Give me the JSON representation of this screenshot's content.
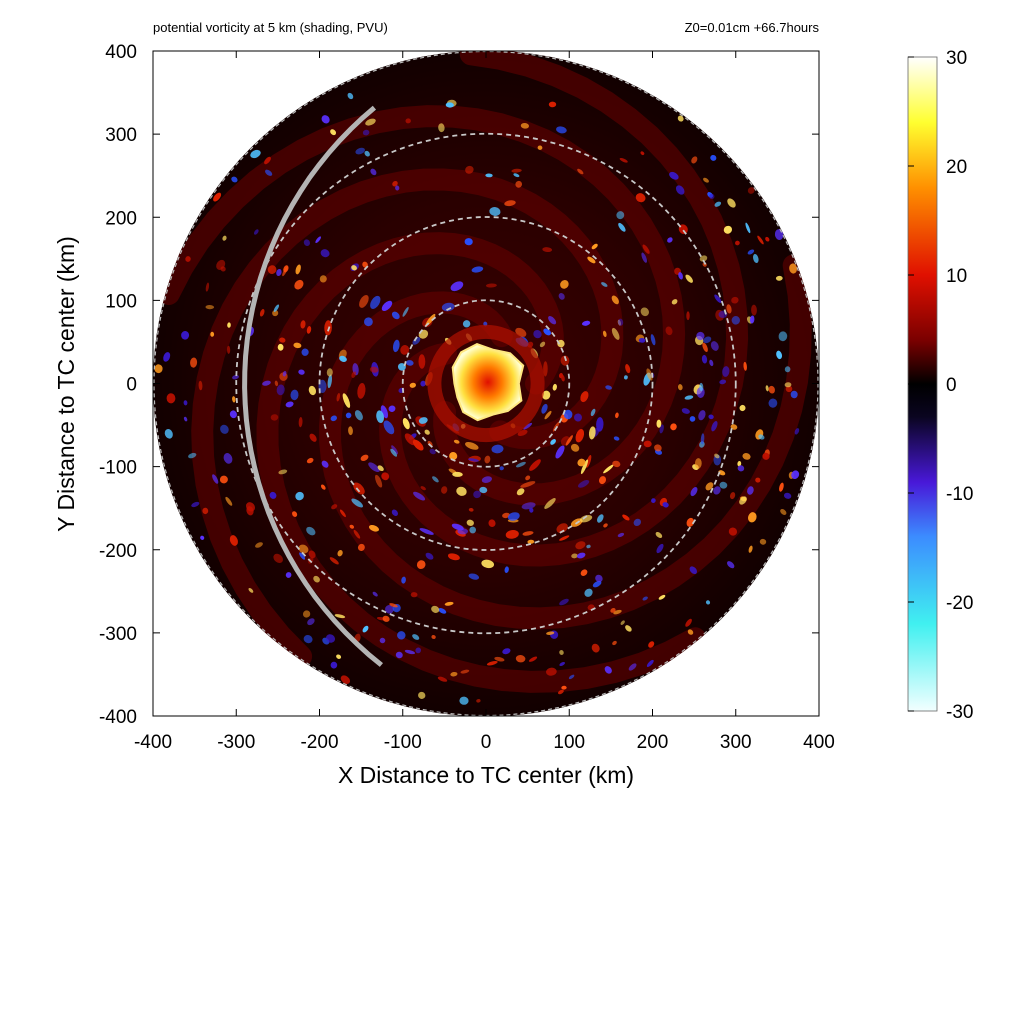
{
  "chart_data": {
    "type": "heatmap",
    "title_left": "potential vorticity at 5 km (shading, PVU)",
    "title_right": "Z0=0.01cm  +66.7hours",
    "xlabel": "X Distance to TC center (km)",
    "ylabel": "Y Distance to TC center (km)",
    "xlim": [
      -400,
      400
    ],
    "ylim": [
      -400,
      400
    ],
    "x_ticks": [
      -400,
      -300,
      -200,
      -100,
      0,
      100,
      200,
      300,
      400
    ],
    "y_ticks": [
      -400,
      -300,
      -200,
      -100,
      0,
      100,
      200,
      300,
      400
    ],
    "x_tick_labels": [
      "-400",
      "-300",
      "-200",
      "-100",
      "0",
      "100",
      "200",
      "300",
      "400"
    ],
    "y_tick_labels": [
      "-400",
      "-300",
      "-200",
      "-100",
      "0",
      "100",
      "200",
      "300",
      "400"
    ],
    "domain_radius_km": 400,
    "range_rings_km": [
      100,
      200,
      300
    ],
    "colorbar": {
      "min": -30,
      "max": 30,
      "ticks": [
        30,
        20,
        10,
        0,
        -10,
        -20,
        -30
      ],
      "tick_labels": [
        "30",
        "20",
        "10",
        "0",
        "-10",
        "-20",
        "-30"
      ],
      "colors": [
        {
          "value": -30,
          "color": "#f2ffff"
        },
        {
          "value": -22,
          "color": "#40f0f0"
        },
        {
          "value": -14,
          "color": "#3c8cff"
        },
        {
          "value": -9,
          "color": "#4818d8"
        },
        {
          "value": -3,
          "color": "#0a0520"
        },
        {
          "value": 0,
          "color": "#000000"
        },
        {
          "value": 4,
          "color": "#7a0000"
        },
        {
          "value": 10,
          "color": "#e01000"
        },
        {
          "value": 18,
          "color": "#ff9000"
        },
        {
          "value": 24,
          "color": "#ffff30"
        },
        {
          "value": 30,
          "color": "#ffffff"
        }
      ]
    },
    "features": {
      "core_max_pv": 30,
      "core_center_km": [
        0,
        0
      ],
      "core_radius_km": 45,
      "track_line_color": "#b4b4b4"
    }
  }
}
